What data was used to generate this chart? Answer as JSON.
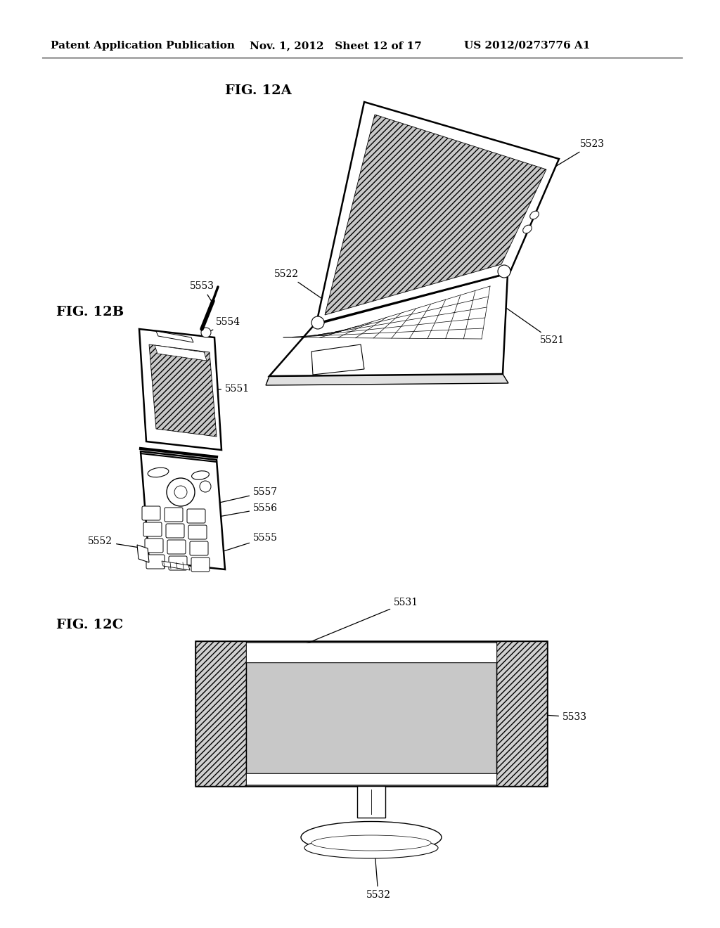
{
  "background_color": "#ffffff",
  "header_left": "Patent Application Publication",
  "header_center": "Nov. 1, 2012   Sheet 12 of 17",
  "header_right": "US 2012/0273776 A1",
  "fig12a_label": "FIG. 12A",
  "fig12b_label": "FIG. 12B",
  "fig12c_label": "FIG. 12C"
}
